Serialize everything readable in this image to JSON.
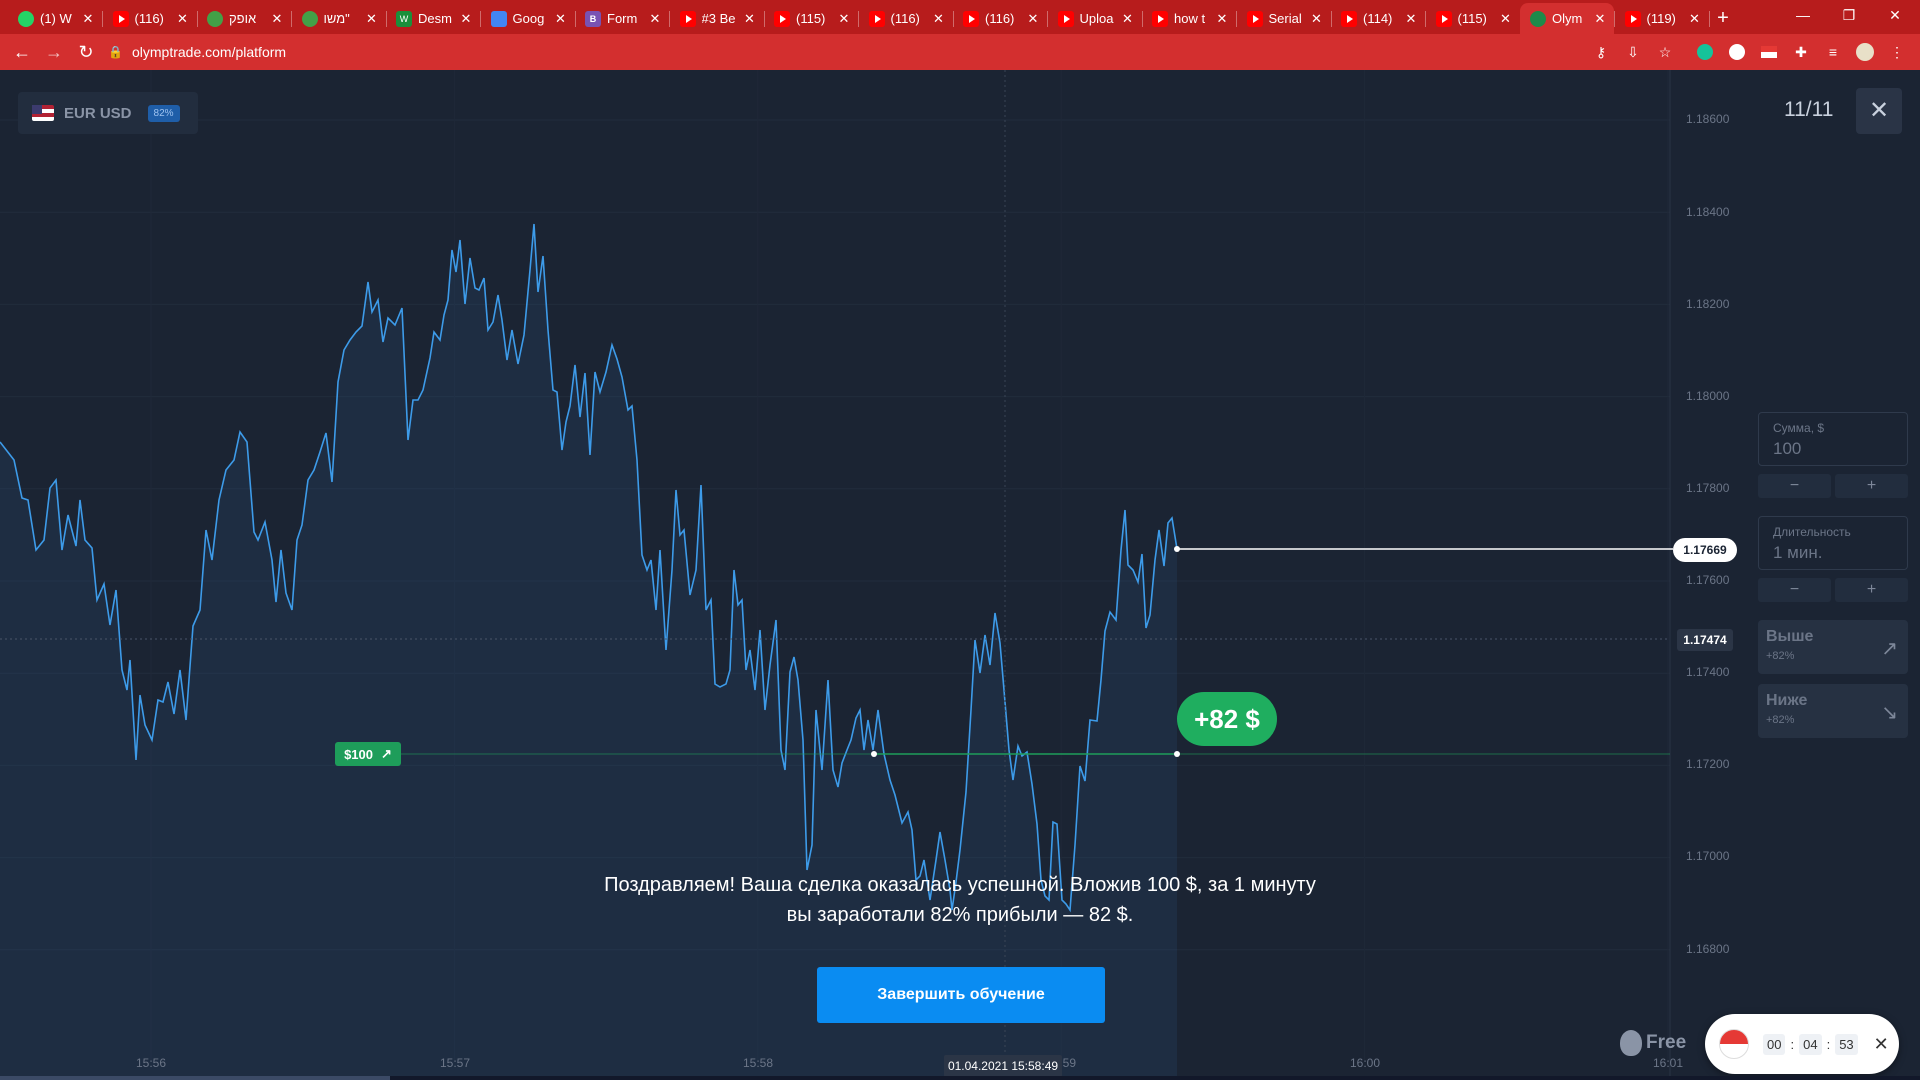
{
  "browser": {
    "tabs": [
      {
        "title": "(1) W",
        "icon": "whatsapp-icon"
      },
      {
        "title": "(116)",
        "icon": "youtube-icon"
      },
      {
        "title": "אופק",
        "icon": "site-icon"
      },
      {
        "title": "משו\"",
        "icon": "site-icon"
      },
      {
        "title": "Desm",
        "icon": "desmos-icon"
      },
      {
        "title": "Goog",
        "icon": "google-docs-icon"
      },
      {
        "title": "Form",
        "icon": "bootstrap-icon"
      },
      {
        "title": "#3 Be",
        "icon": "youtube-icon"
      },
      {
        "title": "(115)",
        "icon": "youtube-icon"
      },
      {
        "title": "(116)",
        "icon": "youtube-icon"
      },
      {
        "title": "(116)",
        "icon": "youtube-icon"
      },
      {
        "title": "Uploa",
        "icon": "youtube-icon"
      },
      {
        "title": "how t",
        "icon": "youtube-icon"
      },
      {
        "title": "Serial",
        "icon": "youtube-icon"
      },
      {
        "title": "(114)",
        "icon": "youtube-icon"
      },
      {
        "title": "(115)",
        "icon": "youtube-icon"
      },
      {
        "title": "Olym",
        "icon": "olymptrade-icon",
        "active": true
      },
      {
        "title": "(119)",
        "icon": "youtube-icon"
      }
    ],
    "url": "olymptrade.com/platform"
  },
  "asset": {
    "name": "EUR USD",
    "payout": "82%"
  },
  "tutorial": {
    "step": "11/11"
  },
  "panel": {
    "amount_label": "Сумма, $",
    "amount_value": "100",
    "duration_label": "Длительность",
    "duration_value": "1 мин.",
    "minus": "−",
    "plus": "+",
    "up_label": "Выше",
    "up_payout": "+82%",
    "down_label": "Ниже",
    "down_payout": "+82%"
  },
  "chart_data": {
    "type": "line",
    "series": [
      {
        "name": "EUR USD",
        "color": "#3d9be9"
      }
    ],
    "y_ticks": [
      "1.18600",
      "1.18400",
      "1.18200",
      "1.18000",
      "1.17800",
      "1.17600",
      "1.17400",
      "1.17200",
      "1.17000",
      "1.16800"
    ],
    "x_ticks": [
      "15:56",
      "15:57",
      "15:58",
      "15:59",
      "16:00",
      "16:01"
    ],
    "current_price": "1.17669",
    "reference_price": "1.17474",
    "entry_price": 1.1722,
    "ylim": [
      1.1676,
      1.1868
    ]
  },
  "deal": {
    "amount": "$100",
    "direction_icon": "↗"
  },
  "profit": "+82 $",
  "message": {
    "line1": "Поздравляем! Ваша сделка оказалась успешной. Вложив 100 $, за 1 минуту",
    "line2": "вы заработали 82% прибыли — 82 $."
  },
  "finish_button": "Завершить обучение",
  "cursor_time": "01.04.2021 15:58:49",
  "brand": "Free",
  "timer": {
    "h": "00",
    "m": "04",
    "s": "53"
  }
}
